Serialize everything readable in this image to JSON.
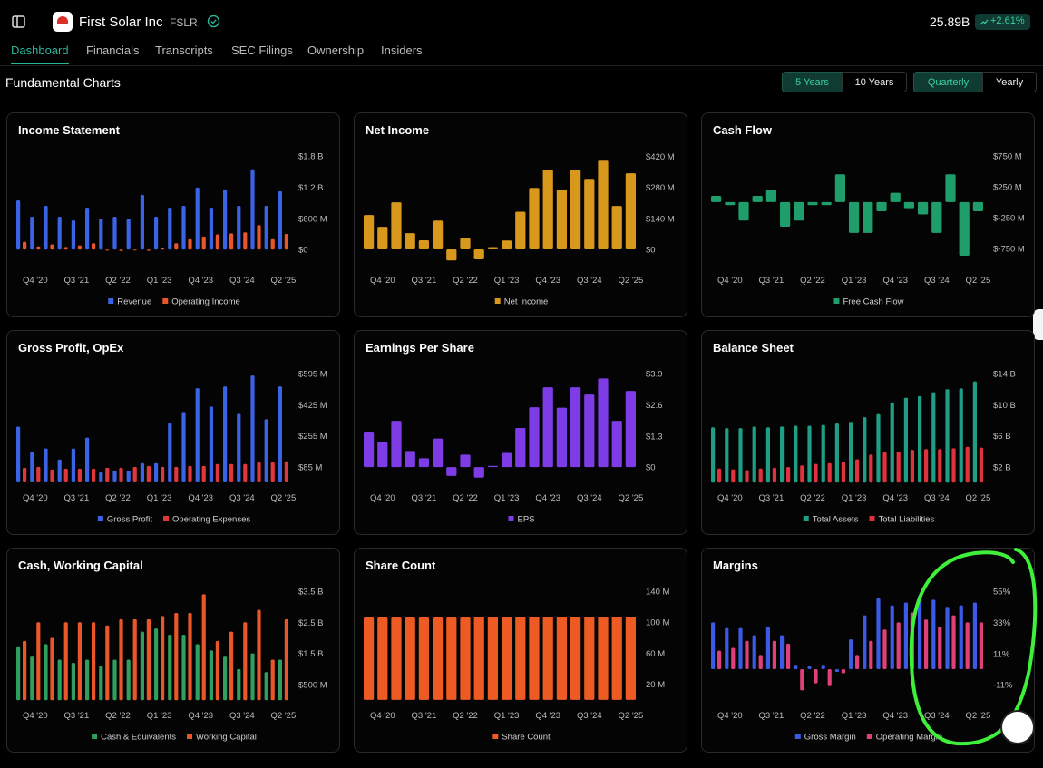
{
  "header": {
    "title": "First Solar Inc",
    "ticker": "FSLR",
    "market_cap": "25.89B",
    "change": "+2.61%"
  },
  "tabs": [
    "Dashboard",
    "Financials",
    "Transcripts",
    "SEC Filings",
    "Ownership",
    "Insiders"
  ],
  "section_title": "Fundamental Charts",
  "range_buttons": [
    "5 Years",
    "10 Years"
  ],
  "period_buttons": [
    "Quarterly",
    "Yearly"
  ],
  "chart_data": [
    {
      "type": "bar",
      "title": "Income Statement",
      "legend": "bottom",
      "categories": [
        null,
        "Q4 '20",
        null,
        null,
        "Q3 '21",
        null,
        null,
        "Q2 '22",
        null,
        null,
        "Q1 '23",
        null,
        null,
        "Q4 '23",
        null,
        null,
        "Q3 '24",
        null,
        null,
        "Q2 '25"
      ],
      "series": [
        {
          "name": "Revenue",
          "color": "#3b63e6",
          "values": [
            945,
            630,
            840,
            630,
            560,
            805,
            595,
            630,
            595,
            1050,
            630,
            805,
            840,
            1190,
            805,
            1155,
            840,
            1540,
            840,
            1120
          ]
        },
        {
          "name": "Operating Income",
          "color": "#e8562a",
          "values": [
            150,
            60,
            100,
            50,
            80,
            120,
            -20,
            -30,
            -15,
            -25,
            20,
            120,
            200,
            250,
            290,
            310,
            330,
            470,
            200,
            300
          ]
        }
      ],
      "ylim": [
        -380,
        1920
      ],
      "yticks": [
        {
          "value": 0,
          "label": "$0"
        },
        {
          "value": 600,
          "label": "$600 M"
        },
        {
          "value": 1200,
          "label": "$1.2 B"
        },
        {
          "value": 1800,
          "label": "$1.8 B"
        }
      ]
    },
    {
      "type": "bar",
      "title": "Net Income",
      "legend": "bottom",
      "categories": [
        null,
        "Q4 '20",
        null,
        null,
        "Q3 '21",
        null,
        null,
        "Q2 '22",
        null,
        null,
        "Q1 '23",
        null,
        null,
        "Q4 '23",
        null,
        null,
        "Q3 '24",
        null,
        null,
        "Q2 '25"
      ],
      "series": [
        {
          "name": "Net Income",
          "color": "#d8981c",
          "values": [
            155,
            102,
            212,
            73,
            41,
            130,
            -50,
            50,
            -45,
            10,
            40,
            170,
            277,
            359,
            269,
            359,
            318,
            400,
            196,
            343
          ]
        }
      ],
      "ylim": [
        -90,
        450
      ],
      "yticks": [
        {
          "value": 0,
          "label": "$0"
        },
        {
          "value": 140,
          "label": "$140 M"
        },
        {
          "value": 280,
          "label": "$280 M"
        },
        {
          "value": 420,
          "label": "$420 M"
        }
      ]
    },
    {
      "type": "bar",
      "title": "Cash Flow",
      "legend": "bottom",
      "categories": [
        null,
        "Q4 '20",
        null,
        null,
        "Q3 '21",
        null,
        null,
        "Q2 '22",
        null,
        null,
        "Q1 '23",
        null,
        null,
        "Q4 '23",
        null,
        null,
        "Q3 '24",
        null,
        null,
        "Q2 '25"
      ],
      "series": [
        {
          "name": "Free Cash Flow",
          "color": "#1f9d6a",
          "values": [
            100,
            -50,
            -300,
            100,
            200,
            -400,
            -300,
            -50,
            -50,
            450,
            -500,
            -500,
            -150,
            150,
            -100,
            -200,
            -500,
            450,
            -870,
            -150
          ]
        }
      ],
      "ylim": [
        -1090,
        850
      ],
      "yticks": [
        {
          "value": -750,
          "label": "$-750 M"
        },
        {
          "value": -250,
          "label": "$-250 M"
        },
        {
          "value": 250,
          "label": "$250 M"
        },
        {
          "value": 750,
          "label": "$750 M"
        }
      ]
    },
    {
      "type": "bar",
      "title": "Gross Profit, OpEx",
      "legend": "bottom",
      "categories": [
        null,
        "Q4 '20",
        null,
        null,
        "Q3 '21",
        null,
        null,
        "Q2 '22",
        null,
        null,
        "Q1 '23",
        null,
        null,
        "Q4 '23",
        null,
        null,
        "Q3 '24",
        null,
        null,
        "Q2 '25"
      ],
      "series": [
        {
          "name": "Gross Profit",
          "color": "#3b63e6",
          "values": [
            305,
            165,
            185,
            125,
            185,
            245,
            55,
            65,
            65,
            105,
            105,
            325,
            385,
            515,
            415,
            525,
            375,
            585,
            345,
            525
          ]
        },
        {
          "name": "Operating Expenses",
          "color": "#e0383a",
          "values": [
            80,
            85,
            70,
            75,
            75,
            75,
            80,
            80,
            85,
            90,
            85,
            85,
            90,
            90,
            100,
            100,
            100,
            110,
            110,
            115
          ]
        }
      ],
      "ylim": [
        -25,
        630
      ],
      "yticks": [
        {
          "value": 85,
          "label": "$85 M"
        },
        {
          "value": 255,
          "label": "$255 M"
        },
        {
          "value": 425,
          "label": "$425 M"
        },
        {
          "value": 595,
          "label": "$595 M"
        }
      ]
    },
    {
      "type": "bar",
      "title": "Earnings Per Share",
      "legend": "bottom",
      "categories": [
        null,
        "Q4 '20",
        null,
        null,
        "Q3 '21",
        null,
        null,
        "Q2 '22",
        null,
        null,
        "Q1 '23",
        null,
        null,
        "Q4 '23",
        null,
        null,
        "Q3 '24",
        null,
        null,
        "Q2 '25"
      ],
      "series": [
        {
          "name": "EPS",
          "color": "#7d3ce6",
          "values": [
            1.48,
            1.04,
            1.93,
            0.67,
            0.37,
            1.19,
            -0.37,
            0.52,
            -0.44,
            0.05,
            0.59,
            1.63,
            2.5,
            3.33,
            2.48,
            3.33,
            3.03,
            3.7,
            1.93,
            3.18
          ]
        }
      ],
      "ylim": [
        -0.83,
        4.17
      ],
      "yticks": [
        {
          "value": 0,
          "label": "$0"
        },
        {
          "value": 1.3,
          "label": "$1.3"
        },
        {
          "value": 2.6,
          "label": "$2.6"
        },
        {
          "value": 3.9,
          "label": "$3.9"
        }
      ]
    },
    {
      "type": "bar",
      "title": "Balance Sheet",
      "legend": "bottom",
      "categories": [
        null,
        "Q4 '20",
        null,
        null,
        "Q3 '21",
        null,
        null,
        "Q2 '22",
        null,
        null,
        "Q1 '23",
        null,
        null,
        "Q4 '23",
        null,
        null,
        "Q3 '24",
        null,
        null,
        "Q2 '25"
      ],
      "series": [
        {
          "name": "Total Assets",
          "color": "#1f9e86",
          "values": [
            7.1,
            7.0,
            7.0,
            7.2,
            7.1,
            7.2,
            7.3,
            7.3,
            7.4,
            7.6,
            7.8,
            8.4,
            8.8,
            10.3,
            10.9,
            11.1,
            11.6,
            12.0,
            12.1,
            13.0
          ]
        },
        {
          "name": "Total Liabilities",
          "color": "#e0323c",
          "values": [
            1.8,
            1.7,
            1.6,
            1.8,
            1.9,
            2.0,
            2.2,
            2.4,
            2.5,
            2.7,
            3.0,
            3.6,
            3.9,
            4.0,
            4.2,
            4.3,
            4.3,
            4.4,
            4.6,
            4.5
          ]
        }
      ],
      "ylim": [
        -0.56,
        14.82
      ],
      "yticks": [
        {
          "value": 2,
          "label": "$2 B"
        },
        {
          "value": 6,
          "label": "$6 B"
        },
        {
          "value": 10,
          "label": "$10 B"
        },
        {
          "value": 14,
          "label": "$14 B"
        }
      ]
    },
    {
      "type": "bar",
      "title": "Cash, Working Capital",
      "legend": "bottom",
      "categories": [
        null,
        "Q4 '20",
        null,
        null,
        "Q3 '21",
        null,
        null,
        "Q2 '22",
        null,
        null,
        "Q1 '23",
        null,
        null,
        "Q4 '23",
        null,
        null,
        "Q3 '24",
        null,
        null,
        "Q2 '25"
      ],
      "series": [
        {
          "name": "Cash & Equivalents",
          "color": "#2f9e5e",
          "values": [
            1700,
            1400,
            1800,
            1300,
            1200,
            1300,
            1100,
            1300,
            1300,
            2200,
            2300,
            2100,
            2100,
            1800,
            1600,
            1400,
            1000,
            1500,
            900,
            1300
          ]
        },
        {
          "name": "Working Capital",
          "color": "#e8562a",
          "values": [
            1900,
            2500,
            2000,
            2500,
            2500,
            2500,
            2400,
            2600,
            2600,
            2600,
            2700,
            2800,
            2800,
            3400,
            1900,
            2200,
            2500,
            2900,
            1300,
            2600
          ]
        }
      ],
      "ylim": [
        -140,
        3700
      ],
      "yticks": [
        {
          "value": 500,
          "label": "$500 M"
        },
        {
          "value": 1500,
          "label": "$1.5 B"
        },
        {
          "value": 2500,
          "label": "$2.5 B"
        },
        {
          "value": 3500,
          "label": "$3.5 B"
        }
      ]
    },
    {
      "type": "bar",
      "title": "Share Count",
      "legend": "bottom",
      "categories": [
        null,
        "Q4 '20",
        null,
        null,
        "Q3 '21",
        null,
        null,
        "Q2 '22",
        null,
        null,
        "Q1 '23",
        null,
        null,
        "Q4 '23",
        null,
        null,
        "Q3 '24",
        null,
        null,
        "Q2 '25"
      ],
      "series": [
        {
          "name": "Share Count",
          "color": "#ee5a24",
          "values": [
            106,
            106,
            106,
            106,
            106,
            106,
            106,
            106,
            107,
            107,
            107,
            107,
            107,
            107,
            107,
            107,
            107,
            107,
            107,
            107
          ]
        }
      ],
      "ylim": [
        -6,
        148
      ],
      "yticks": [
        {
          "value": 20,
          "label": "20 M"
        },
        {
          "value": 60,
          "label": "60 M"
        },
        {
          "value": 100,
          "label": "100 M"
        },
        {
          "value": 140,
          "label": "140 M"
        }
      ]
    },
    {
      "type": "bar",
      "title": "Margins",
      "legend": "bottom",
      "categories": [
        null,
        "Q4 '20",
        null,
        null,
        "Q3 '21",
        null,
        null,
        "Q2 '22",
        null,
        null,
        "Q1 '23",
        null,
        null,
        "Q4 '23",
        null,
        null,
        "Q3 '24",
        null,
        null,
        "Q2 '25"
      ],
      "series": [
        {
          "name": "Gross Margin",
          "color": "#3b5be6",
          "values": [
            33,
            29,
            29,
            24,
            30,
            24,
            3,
            2,
            3,
            -2,
            21,
            38,
            50,
            45,
            47,
            52,
            49,
            44,
            45,
            47
          ]
        },
        {
          "name": "Operating Margin",
          "color": "#e0407a",
          "values": [
            13,
            15,
            20,
            10,
            20,
            18,
            -15,
            -10,
            -12,
            -3,
            10,
            20,
            28,
            33,
            40,
            35,
            30,
            38,
            33,
            33
          ]
        }
      ],
      "ylim": [
        -25,
        59.5
      ],
      "yticks": [
        {
          "value": -11,
          "label": "-11%"
        },
        {
          "value": 11,
          "label": "11%"
        },
        {
          "value": 33,
          "label": "33%"
        },
        {
          "value": 55,
          "label": "55%"
        }
      ]
    }
  ]
}
